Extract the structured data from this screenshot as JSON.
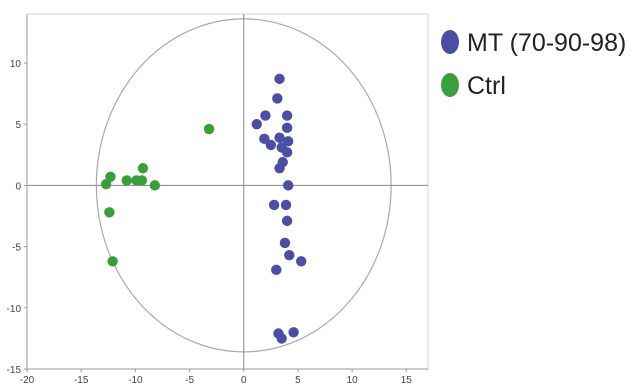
{
  "chart_data": {
    "type": "scatter",
    "title": "",
    "xlabel": "",
    "ylabel": "",
    "xlim": [
      -20,
      17
    ],
    "ylim": [
      -15,
      14
    ],
    "xticks": [
      -20,
      -15,
      -10,
      -5,
      0,
      5,
      10,
      15
    ],
    "yticks": [
      10,
      5,
      0,
      -5,
      -10,
      -15
    ],
    "ytick_labels": [
      "10",
      "5",
      "0",
      "-5",
      "-10",
      "-15"
    ],
    "ellipse": {
      "center": [
        0,
        0
      ],
      "rx": 13.6,
      "ry": 13.6
    },
    "grid": false,
    "legend_position": "right",
    "series": [
      {
        "name": "MT (70-90-98)",
        "color": "#4b4fa3",
        "points": [
          [
            3.3,
            8.7
          ],
          [
            3.1,
            7.1
          ],
          [
            1.2,
            5.0
          ],
          [
            2.0,
            5.7
          ],
          [
            4.0,
            5.7
          ],
          [
            4.0,
            4.7
          ],
          [
            1.9,
            3.8
          ],
          [
            2.5,
            3.3
          ],
          [
            3.3,
            3.9
          ],
          [
            3.5,
            3.1
          ],
          [
            4.1,
            3.6
          ],
          [
            4.0,
            2.7
          ],
          [
            3.6,
            1.9
          ],
          [
            3.3,
            1.4
          ],
          [
            4.1,
            0.0
          ],
          [
            2.8,
            -1.6
          ],
          [
            3.9,
            -1.6
          ],
          [
            4.0,
            -2.9
          ],
          [
            3.8,
            -4.7
          ],
          [
            4.2,
            -5.7
          ],
          [
            5.3,
            -6.2
          ],
          [
            3.0,
            -6.9
          ],
          [
            3.2,
            -12.1
          ],
          [
            3.5,
            -12.5
          ],
          [
            4.6,
            -12.0
          ]
        ]
      },
      {
        "name": "Ctrl",
        "color": "#3a9e3a",
        "points": [
          [
            -3.2,
            4.6
          ],
          [
            -9.3,
            1.4
          ],
          [
            -12.3,
            0.7
          ],
          [
            -10.8,
            0.4
          ],
          [
            -9.9,
            0.4
          ],
          [
            -9.4,
            0.4
          ],
          [
            -12.7,
            0.1
          ],
          [
            -8.2,
            0.0
          ],
          [
            -12.4,
            -2.2
          ],
          [
            -12.1,
            -6.2
          ]
        ]
      }
    ]
  }
}
